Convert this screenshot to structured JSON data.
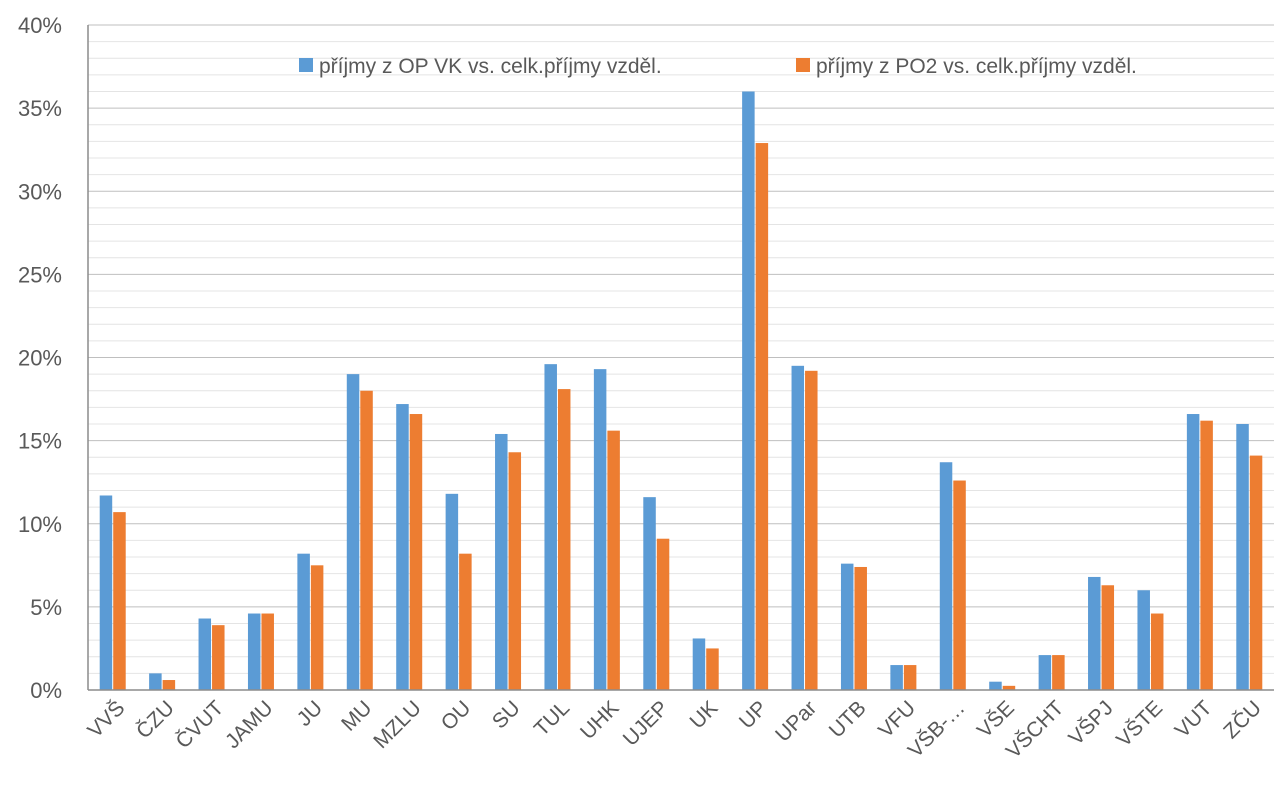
{
  "chart_data": {
    "type": "bar",
    "title": "",
    "xlabel": "",
    "ylabel": "",
    "ylim": [
      0,
      40
    ],
    "y_ticks": [
      "0%",
      "5%",
      "10%",
      "15%",
      "20%",
      "25%",
      "30%",
      "35%",
      "40%"
    ],
    "y_tick_values": [
      0,
      5,
      10,
      15,
      20,
      25,
      30,
      35,
      40
    ],
    "grid": "major and minor horizontal gridlines",
    "legend_position": "top-right",
    "categories": [
      "VVŠ",
      "ČZU",
      "ČVUT",
      "JAMU",
      "JU",
      "MU",
      "MZLU",
      "OU",
      "SU",
      "TUL",
      "UHK",
      "UJEP",
      "UK",
      "UP",
      "UPar",
      "UTB",
      "VFU",
      "VŠB-…",
      "VŠE",
      "VŠCHT",
      "VŠPJ",
      "VŠTE",
      "VUT",
      "ZČU"
    ],
    "series": [
      {
        "name": "příjmy z OP VK vs. celk.příjmy vzděl.",
        "color": "#5B9BD5",
        "values": [
          11.7,
          1.0,
          4.3,
          4.6,
          8.2,
          19.0,
          17.2,
          11.8,
          15.4,
          19.6,
          19.3,
          11.6,
          3.1,
          36.0,
          19.5,
          7.6,
          1.5,
          13.7,
          0.5,
          2.1,
          6.8,
          6.0,
          16.6,
          16.0
        ]
      },
      {
        "name": "příjmy z PO2 vs. celk.příjmy vzděl.",
        "color": "#ED7D31",
        "values": [
          10.7,
          0.6,
          3.9,
          4.6,
          7.5,
          18.0,
          16.6,
          8.2,
          14.3,
          18.1,
          15.6,
          9.1,
          2.5,
          32.9,
          19.2,
          7.4,
          1.5,
          12.6,
          0.25,
          2.1,
          6.3,
          4.6,
          16.2,
          14.1
        ]
      }
    ]
  }
}
